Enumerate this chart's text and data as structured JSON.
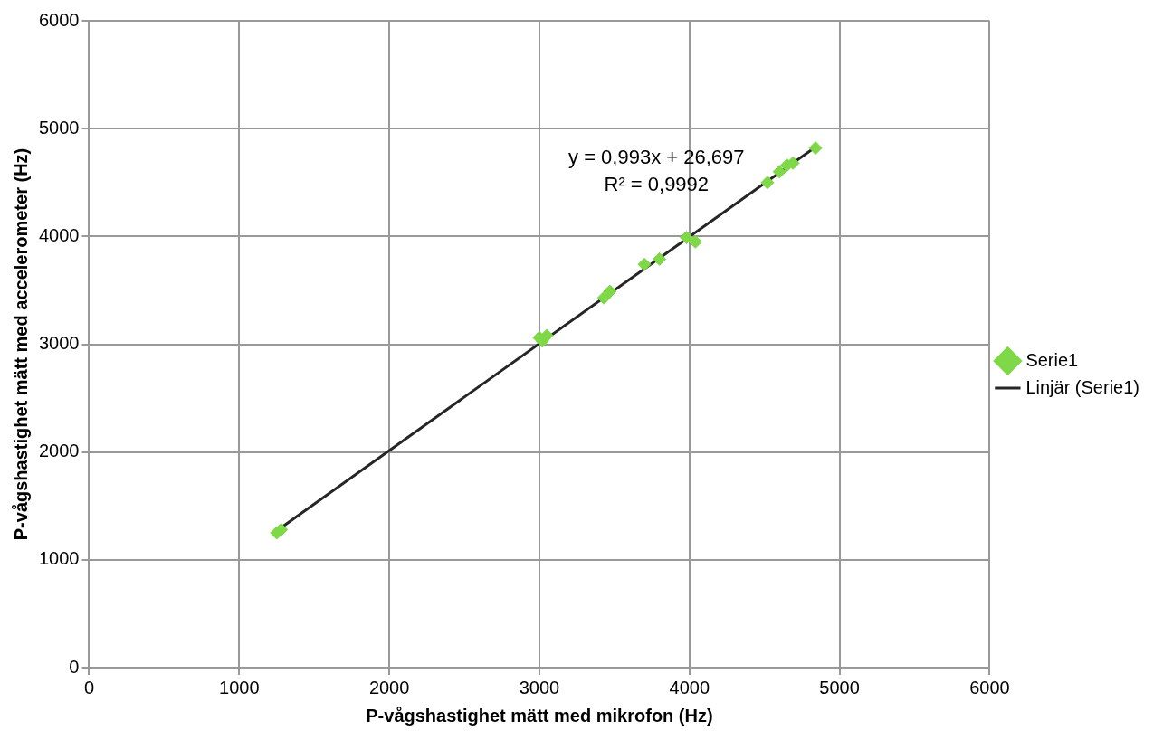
{
  "chart_data": {
    "type": "scatter",
    "xlabel": "P-vågshastighet mätt med mikrofon (Hz)",
    "ylabel": "P-vågshastighet mätt med accelerometer (Hz)",
    "xlim": [
      0,
      6000
    ],
    "xticks": [
      0,
      1000,
      2000,
      3000,
      4000,
      5000,
      6000
    ],
    "ylim": [
      0,
      6000
    ],
    "yticks": [
      0,
      1000,
      2000,
      3000,
      4000,
      5000,
      6000
    ],
    "grid": true,
    "legend": "right",
    "marker": "diamond",
    "annotations": [
      "y = 0,993x + 26,697",
      "R² = 0,9992"
    ],
    "series": [
      {
        "name": "Serie1",
        "type": "scatter",
        "color": "#7ed848",
        "x": [
          1250,
          1280,
          3000,
          3050,
          3020,
          3430,
          3470,
          3700,
          3800,
          3980,
          4040,
          4520,
          4600,
          4650,
          4690,
          4840
        ],
        "values": [
          1250,
          1280,
          3060,
          3080,
          3030,
          3430,
          3490,
          3740,
          3790,
          3990,
          3950,
          4500,
          4600,
          4660,
          4680,
          4820
        ]
      },
      {
        "name": "Linjär (Serie1)",
        "type": "line",
        "color": "#262626",
        "x": [
          1250,
          4840
        ],
        "values": [
          1270,
          4830
        ],
        "line_style": "solid",
        "marker": "none"
      }
    ]
  }
}
